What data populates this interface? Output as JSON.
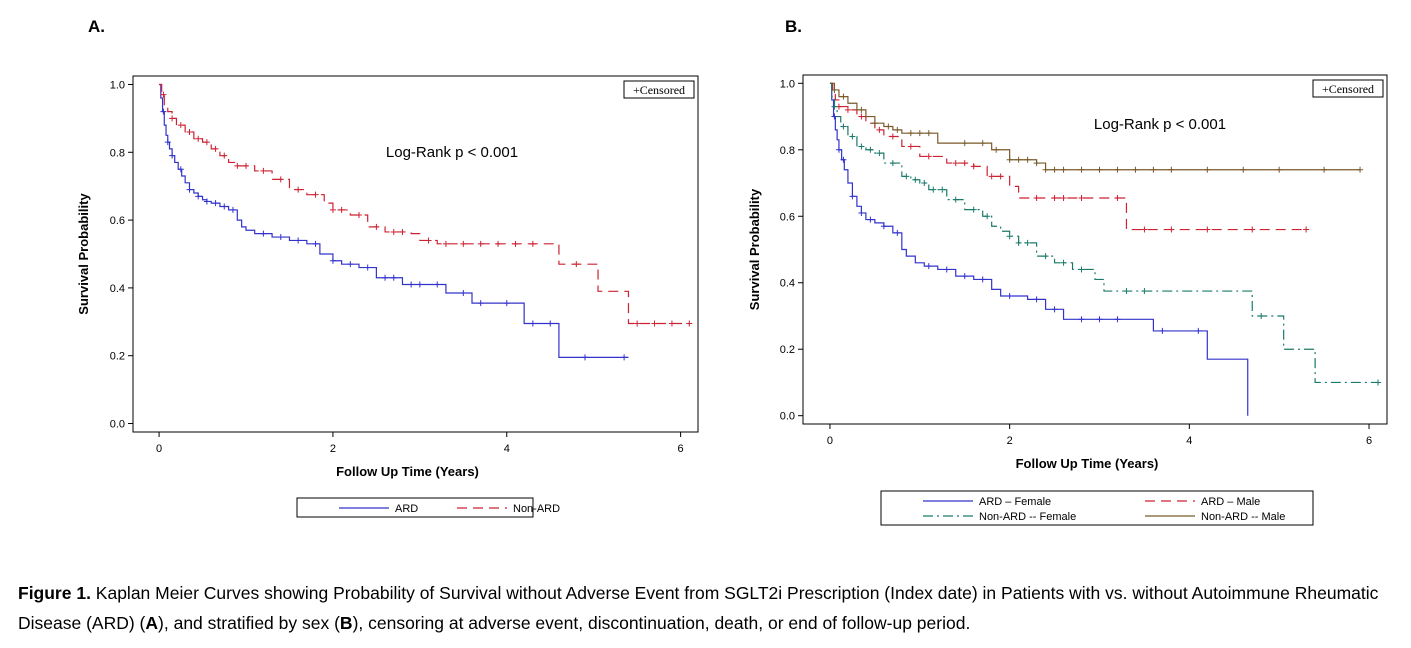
{
  "panel_labels": [
    "A.",
    "B."
  ],
  "caption": {
    "bold_prefix": "Figure 1.",
    "text_1": " Kaplan Meier Curves showing Probability of Survival without Adverse Event from SGLT2i Prescription (Index date) in Patients with vs. without Autoimmune Rheumatic Disease (ARD) (",
    "bold_a": "A",
    "text_2": "), and stratified by sex (",
    "bold_b": "B",
    "text_3": "), censoring at adverse event, discontinuation, death, or end of follow-up period."
  },
  "colors": {
    "ard": "#3333cc",
    "non_ard": "#cc2233",
    "ard_female": "#3333cc",
    "ard_male": "#cc2233",
    "non_ard_female": "#1a7a6a",
    "non_ard_male": "#7a5a2a"
  },
  "chart_data": [
    {
      "type": "line",
      "subtype": "kaplan-meier",
      "xlabel": "Follow Up Time (Years)",
      "ylabel": "Survival Probability",
      "xlim": [
        -0.3,
        6.2
      ],
      "ylim": [
        -0.025,
        1.025
      ],
      "xticks": [
        0,
        2,
        4,
        6
      ],
      "yticks": [
        0.0,
        0.2,
        0.4,
        0.6,
        0.8,
        1.0
      ],
      "xtick_labels": [
        "0",
        "2",
        "4",
        "6"
      ],
      "ytick_labels": [
        "0.0",
        "0.2",
        "0.4",
        "0.6",
        "0.8",
        "1.0"
      ],
      "annotation": "Log-Rank p < 0.001",
      "censored_label": "Censored",
      "legend_position": "bottom",
      "series": [
        {
          "name": "ARD",
          "dash": "solid",
          "color_key": "ard",
          "x": [
            0,
            0.02,
            0.04,
            0.06,
            0.08,
            0.1,
            0.12,
            0.15,
            0.18,
            0.22,
            0.26,
            0.3,
            0.35,
            0.4,
            0.45,
            0.5,
            0.55,
            0.6,
            0.7,
            0.8,
            0.9,
            0.95,
            1.0,
            1.1,
            1.3,
            1.5,
            1.7,
            1.85,
            2.0,
            2.1,
            2.3,
            2.5,
            2.8,
            3.1,
            3.3,
            3.6,
            4.2,
            4.6,
            5.4
          ],
          "y": [
            1.0,
            0.96,
            0.92,
            0.88,
            0.85,
            0.83,
            0.81,
            0.79,
            0.77,
            0.75,
            0.73,
            0.71,
            0.69,
            0.68,
            0.67,
            0.66,
            0.655,
            0.65,
            0.64,
            0.63,
            0.6,
            0.58,
            0.57,
            0.56,
            0.55,
            0.54,
            0.53,
            0.5,
            0.48,
            0.47,
            0.46,
            0.43,
            0.41,
            0.41,
            0.385,
            0.355,
            0.295,
            0.195,
            0.195
          ],
          "censor_x": [
            0.05,
            0.1,
            0.15,
            0.25,
            0.35,
            0.45,
            0.55,
            0.65,
            0.75,
            0.85,
            1.2,
            1.4,
            1.6,
            1.8,
            2.0,
            2.2,
            2.4,
            2.6,
            2.7,
            2.9,
            3.0,
            3.2,
            3.5,
            3.7,
            4.0,
            4.3,
            4.5,
            4.9,
            5.35
          ]
        },
        {
          "name": "Non-ARD",
          "dash": "dashed",
          "color_key": "non_ard",
          "x": [
            0,
            0.03,
            0.06,
            0.1,
            0.15,
            0.2,
            0.3,
            0.4,
            0.5,
            0.6,
            0.7,
            0.8,
            0.9,
            1.0,
            1.1,
            1.3,
            1.5,
            1.7,
            1.9,
            2.0,
            2.2,
            2.4,
            2.6,
            2.9,
            3.0,
            3.2,
            4.6,
            5.05,
            5.4,
            6.1
          ],
          "y": [
            1.0,
            0.97,
            0.94,
            0.92,
            0.9,
            0.88,
            0.86,
            0.84,
            0.83,
            0.81,
            0.79,
            0.77,
            0.76,
            0.76,
            0.745,
            0.72,
            0.69,
            0.675,
            0.65,
            0.63,
            0.615,
            0.58,
            0.565,
            0.56,
            0.54,
            0.53,
            0.47,
            0.39,
            0.295,
            0.295
          ],
          "censor_x": [
            0.05,
            0.15,
            0.25,
            0.35,
            0.45,
            0.55,
            0.65,
            0.75,
            0.9,
            1.0,
            1.2,
            1.4,
            1.6,
            1.8,
            2.0,
            2.1,
            2.3,
            2.5,
            2.7,
            2.8,
            3.1,
            3.3,
            3.5,
            3.7,
            3.9,
            4.1,
            4.3,
            4.8,
            5.5,
            5.7,
            5.9,
            6.1
          ]
        }
      ]
    },
    {
      "type": "line",
      "subtype": "kaplan-meier",
      "xlabel": "Follow Up Time (Years)",
      "ylabel": "Survival Probability",
      "xlim": [
        -0.3,
        6.2
      ],
      "ylim": [
        -0.025,
        1.025
      ],
      "xticks": [
        0,
        2,
        4,
        6
      ],
      "yticks": [
        0.0,
        0.2,
        0.4,
        0.6,
        0.8,
        1.0
      ],
      "xtick_labels": [
        "0",
        "2",
        "4",
        "6"
      ],
      "ytick_labels": [
        "0.0",
        "0.2",
        "0.4",
        "0.6",
        "0.8",
        "1.0"
      ],
      "annotation": "Log-Rank p < 0.001",
      "censored_label": "Censored",
      "legend_position": "bottom",
      "series": [
        {
          "name": "ARD – Female",
          "dash": "solid",
          "color_key": "ard_female",
          "x": [
            0,
            0.02,
            0.04,
            0.06,
            0.08,
            0.1,
            0.13,
            0.16,
            0.2,
            0.25,
            0.3,
            0.35,
            0.4,
            0.5,
            0.6,
            0.7,
            0.8,
            0.85,
            0.95,
            1.05,
            1.2,
            1.4,
            1.6,
            1.8,
            1.9,
            2.2,
            2.4,
            2.6,
            3.0,
            3.6,
            4.2,
            4.6,
            4.65
          ],
          "y": [
            1.0,
            0.95,
            0.9,
            0.86,
            0.83,
            0.8,
            0.77,
            0.74,
            0.7,
            0.66,
            0.63,
            0.61,
            0.59,
            0.58,
            0.57,
            0.55,
            0.5,
            0.48,
            0.46,
            0.45,
            0.44,
            0.42,
            0.41,
            0.38,
            0.36,
            0.35,
            0.32,
            0.29,
            0.29,
            0.255,
            0.17,
            0.17,
            0.0
          ],
          "censor_x": [
            0.05,
            0.1,
            0.15,
            0.25,
            0.35,
            0.45,
            0.6,
            0.75,
            1.1,
            1.3,
            1.5,
            1.7,
            2.0,
            2.3,
            2.5,
            2.8,
            3.0,
            3.2,
            3.7,
            4.1
          ]
        },
        {
          "name": "ARD – Male",
          "dash": "dashed",
          "color_key": "ard_male",
          "x": [
            0,
            0.03,
            0.06,
            0.1,
            0.2,
            0.3,
            0.4,
            0.5,
            0.6,
            0.8,
            1.0,
            1.3,
            1.6,
            1.75,
            2.0,
            2.1,
            3.3,
            5.3
          ],
          "y": [
            1.0,
            0.97,
            0.95,
            0.93,
            0.92,
            0.9,
            0.88,
            0.86,
            0.84,
            0.81,
            0.78,
            0.76,
            0.75,
            0.72,
            0.69,
            0.655,
            0.56,
            0.56
          ],
          "censor_x": [
            0.1,
            0.2,
            0.35,
            0.55,
            0.7,
            0.9,
            1.1,
            1.4,
            1.5,
            1.6,
            1.8,
            1.9,
            2.3,
            2.5,
            2.6,
            2.8,
            3.2,
            3.5,
            3.8,
            4.2,
            4.7,
            5.3
          ]
        },
        {
          "name": "Non-ARD -- Female",
          "dash": "dashdot",
          "color_key": "non_ard_female",
          "x": [
            0,
            0.02,
            0.05,
            0.08,
            0.12,
            0.2,
            0.3,
            0.4,
            0.5,
            0.6,
            0.8,
            0.9,
            1.0,
            1.1,
            1.3,
            1.5,
            1.7,
            1.8,
            1.9,
            2.0,
            2.1,
            2.3,
            2.5,
            2.7,
            2.95,
            3.05,
            4.7,
            5.05,
            5.4,
            6.1
          ],
          "y": [
            1.0,
            0.96,
            0.93,
            0.9,
            0.87,
            0.84,
            0.81,
            0.8,
            0.79,
            0.76,
            0.72,
            0.71,
            0.7,
            0.68,
            0.65,
            0.62,
            0.6,
            0.57,
            0.555,
            0.54,
            0.52,
            0.48,
            0.46,
            0.44,
            0.41,
            0.375,
            0.3,
            0.2,
            0.1,
            0.1
          ],
          "censor_x": [
            0.05,
            0.15,
            0.25,
            0.35,
            0.45,
            0.55,
            0.7,
            0.85,
            0.95,
            1.05,
            1.15,
            1.25,
            1.4,
            1.6,
            1.75,
            2.0,
            2.1,
            2.2,
            2.4,
            2.6,
            2.8,
            3.3,
            3.5,
            4.8,
            6.1
          ]
        },
        {
          "name": "Non-ARD -- Male",
          "dash": "solid",
          "color_key": "non_ard_male",
          "x": [
            0,
            0.05,
            0.1,
            0.2,
            0.3,
            0.4,
            0.5,
            0.6,
            0.7,
            0.8,
            1.2,
            1.8,
            2.0,
            2.3,
            2.4,
            5.9
          ],
          "y": [
            1.0,
            0.98,
            0.96,
            0.94,
            0.92,
            0.9,
            0.88,
            0.87,
            0.86,
            0.85,
            0.82,
            0.8,
            0.77,
            0.76,
            0.74,
            0.74
          ],
          "censor_x": [
            0.05,
            0.15,
            0.35,
            0.5,
            0.65,
            0.75,
            0.9,
            1.0,
            1.1,
            1.5,
            1.7,
            1.85,
            2.0,
            2.1,
            2.2,
            2.3,
            2.4,
            2.5,
            2.6,
            2.8,
            3.0,
            3.2,
            3.4,
            3.6,
            3.8,
            4.2,
            4.6,
            5.0,
            5.5,
            5.9
          ]
        }
      ]
    }
  ]
}
